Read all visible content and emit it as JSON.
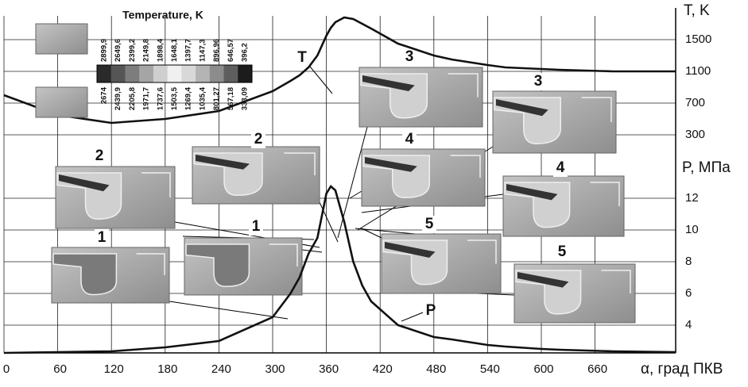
{
  "chart_data": {
    "type": "line",
    "x_label": "α, град ПКВ",
    "y_label": "T, K",
    "y2_label": "P, МПа",
    "x": [
      0,
      60,
      120,
      180,
      240,
      300,
      320,
      330,
      340,
      350,
      360,
      365,
      370,
      380,
      390,
      400,
      410,
      440,
      480,
      500,
      540,
      560,
      600,
      620,
      680,
      750
    ],
    "series": [
      {
        "name": "T",
        "color": "#111111",
        "values": [
          800,
          550,
          450,
          500,
          600,
          850,
          980,
          1050,
          1150,
          1300,
          1550,
          1650,
          1720,
          1780,
          1760,
          1700,
          1640,
          1450,
          1300,
          1250,
          1180,
          1150,
          1130,
          1120,
          1100,
          1100
        ]
      },
      {
        "name": "P",
        "color": "#111111",
        "axis": "y2",
        "values": [
          2.25,
          2.3,
          2.35,
          2.6,
          3,
          4.5,
          6,
          7,
          8.5,
          9.5,
          12.3,
          12.75,
          12.5,
          10.5,
          8,
          6.5,
          5.5,
          4,
          3.25,
          3.1,
          2.75,
          2.65,
          2.5,
          2.45,
          2.35,
          2.3
        ]
      }
    ],
    "xlim": [
      0,
      750
    ],
    "xticks": [
      0,
      60,
      120,
      180,
      240,
      300,
      360,
      420,
      480,
      540,
      600,
      660
    ],
    "ylim": [
      -2450,
      1800
    ],
    "yticks": [
      300,
      700,
      1100,
      1500
    ],
    "y2lim": [
      2.25,
      23.5
    ],
    "y2ticks": [
      4,
      6,
      8,
      10,
      12
    ],
    "grid": true,
    "colorbar": {
      "title": "Temperature, K",
      "upper": [
        "2899,9",
        "2649,6",
        "2399,2",
        "2149,8",
        "1898,4",
        "1648,1",
        "1397,7",
        "1147,3",
        "896,96",
        "646,57",
        "396,2"
      ],
      "lower": [
        "2674",
        "2439,9",
        "2205,8",
        "1971,7",
        "1737,6",
        "1503,5",
        "1269,4",
        "1035,4",
        "801,27",
        "567,18",
        "333,09"
      ]
    },
    "insets": [
      "1",
      "1",
      "2",
      "2",
      "3",
      "3",
      "4",
      "4",
      "5",
      "5"
    ]
  }
}
